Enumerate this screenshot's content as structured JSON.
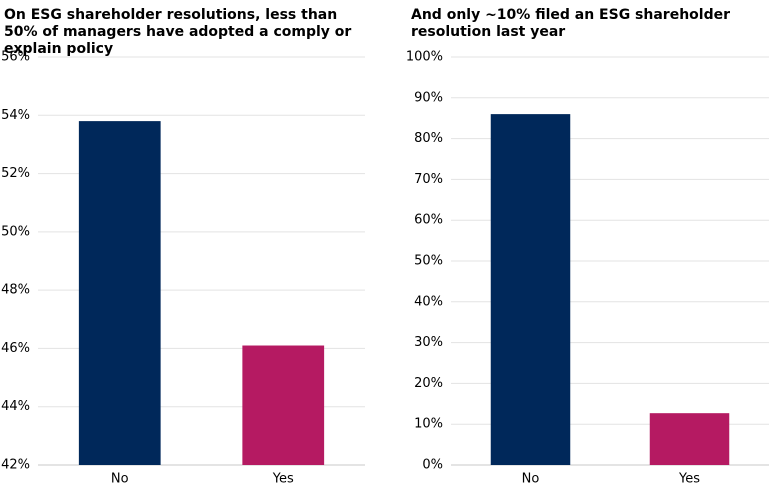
{
  "chart_data": [
    {
      "type": "bar",
      "title": "On ESG shareholder resolutions, less than 50% of managers have adopted a comply or explain policy",
      "categories": [
        "No",
        "Yes"
      ],
      "values": [
        53.8,
        46.1
      ],
      "colors": [
        "#00285a",
        "#b51a62"
      ],
      "ylim": [
        42,
        56
      ],
      "yticks": [
        {
          "value": 42,
          "label": "42%"
        },
        {
          "value": 44,
          "label": "44%"
        },
        {
          "value": 46,
          "label": "46%"
        },
        {
          "value": 48,
          "label": "48%"
        },
        {
          "value": 50,
          "label": "50%"
        },
        {
          "value": 52,
          "label": "52%"
        },
        {
          "value": 54,
          "label": "54%"
        },
        {
          "value": 56,
          "label": "56%"
        }
      ],
      "grid": true
    },
    {
      "type": "bar",
      "title": "And only ~10% filed an ESG shareholder resolution last year",
      "categories": [
        "No",
        "Yes"
      ],
      "values": [
        86,
        12.7
      ],
      "colors": [
        "#00285a",
        "#b51a62"
      ],
      "ylim": [
        0,
        100
      ],
      "yticks": [
        {
          "value": 0,
          "label": "0%"
        },
        {
          "value": 10,
          "label": "10%"
        },
        {
          "value": 20,
          "label": "20%"
        },
        {
          "value": 30,
          "label": "30%"
        },
        {
          "value": 40,
          "label": "40%"
        },
        {
          "value": 50,
          "label": "50%"
        },
        {
          "value": 60,
          "label": "60%"
        },
        {
          "value": 70,
          "label": "70%"
        },
        {
          "value": 80,
          "label": "80%"
        },
        {
          "value": 90,
          "label": "90%"
        },
        {
          "value": 100,
          "label": "100%"
        }
      ],
      "grid": true
    }
  ]
}
